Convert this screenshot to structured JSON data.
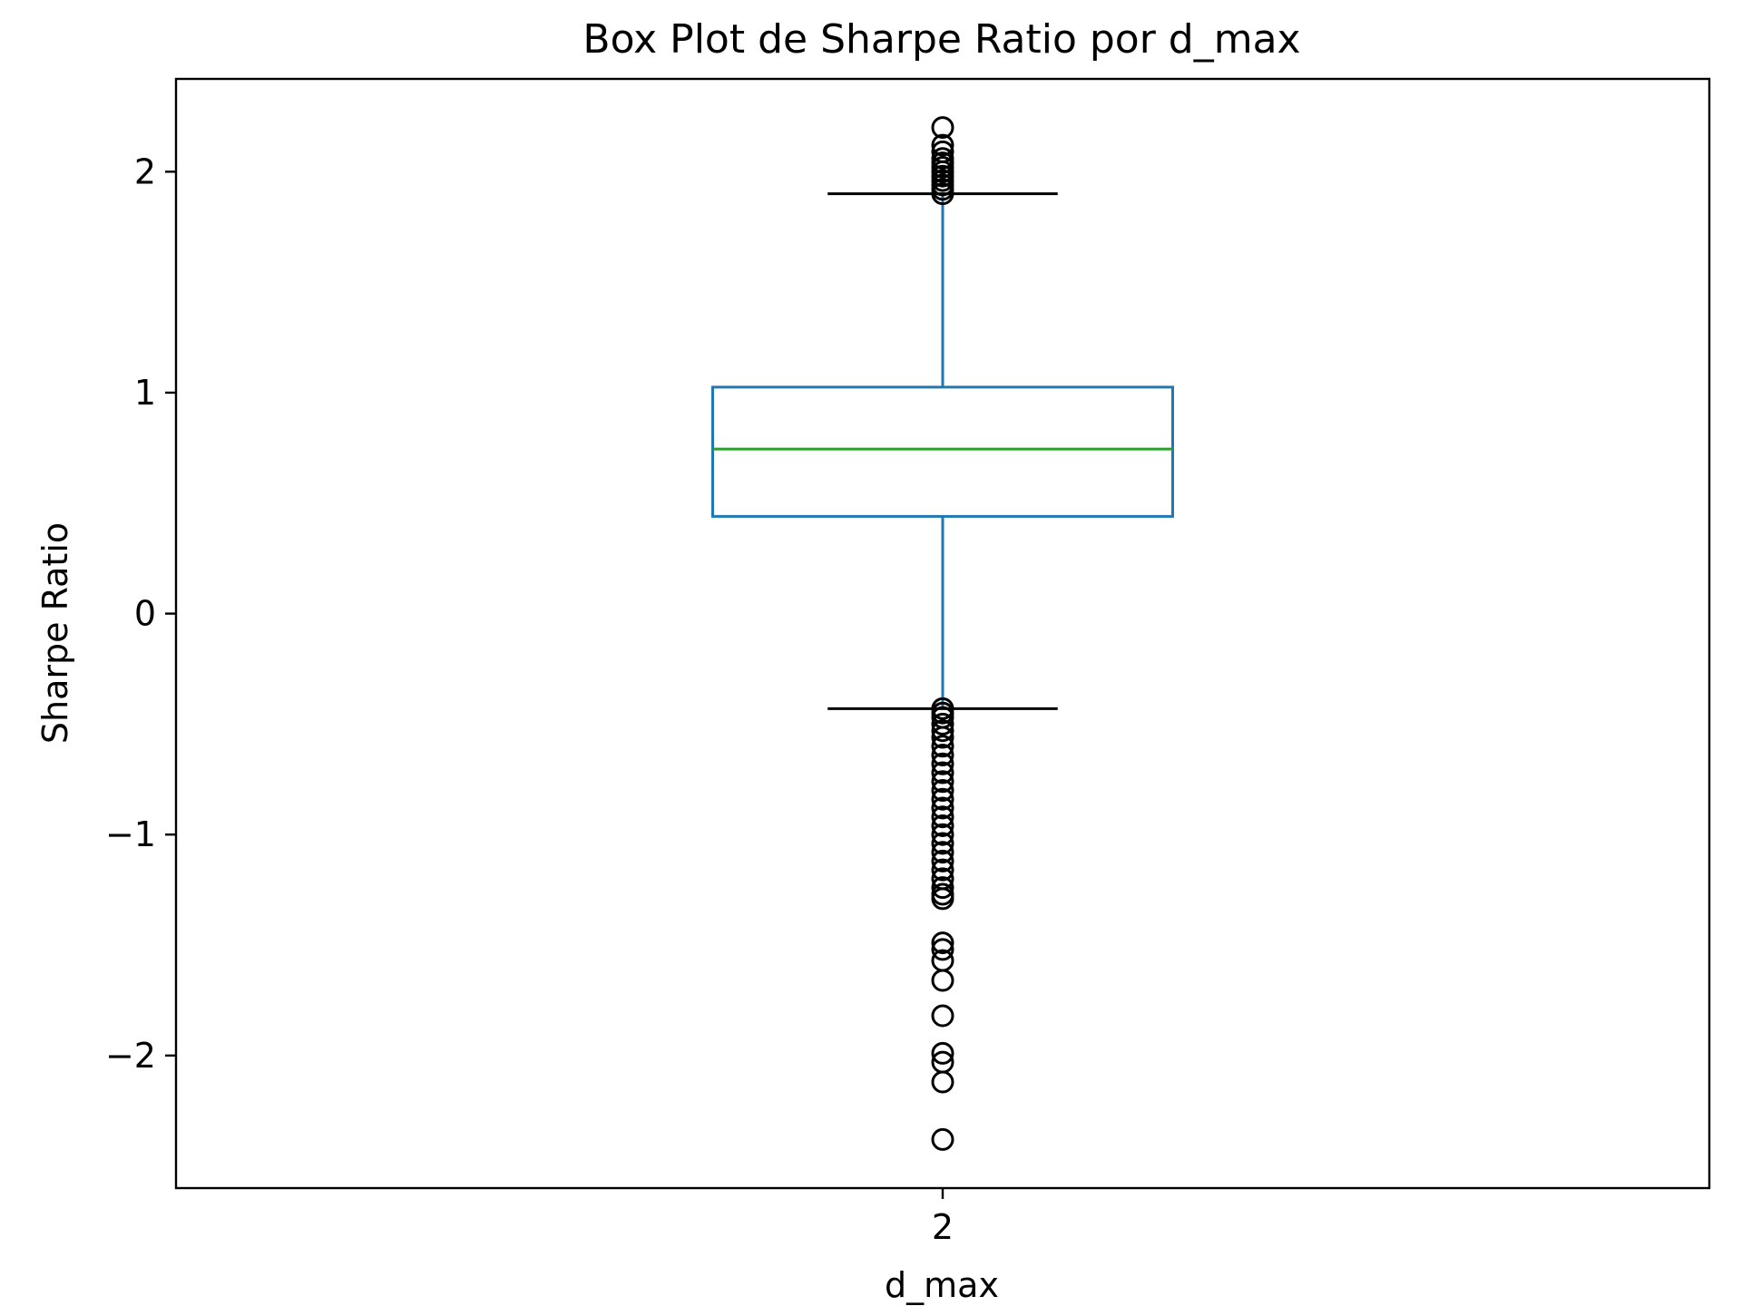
{
  "chart_data": {
    "type": "box",
    "title": "Box Plot de Sharpe Ratio por d_max",
    "xlabel": "d_max",
    "ylabel": "Sharpe Ratio",
    "ylim": [
      -2.6,
      2.42
    ],
    "yticks": [
      {
        "value": 2,
        "label": "2"
      },
      {
        "value": 1,
        "label": "1"
      },
      {
        "value": 0,
        "label": "0"
      },
      {
        "value": -1,
        "label": "−1"
      },
      {
        "value": -2,
        "label": "−2"
      }
    ],
    "grid": false,
    "colors": {
      "box": "#1f77b4",
      "median": "#2ca02c",
      "whisker": "#1f77b4",
      "cap": "#000000",
      "flier": "#000000"
    },
    "boxes": [
      {
        "category": "2",
        "q1": 0.44,
        "median": 0.745,
        "q3": 1.025,
        "whisker_low": -0.43,
        "whisker_high": 1.9,
        "fliers": [
          2.2,
          2.12,
          2.09,
          2.06,
          2.04,
          2.02,
          2.0,
          1.98,
          1.96,
          1.94,
          1.92,
          1.9,
          -0.43,
          -0.45,
          -0.47,
          -0.5,
          -0.53,
          -0.56,
          -0.6,
          -0.64,
          -0.68,
          -0.72,
          -0.76,
          -0.8,
          -0.84,
          -0.88,
          -0.92,
          -0.96,
          -1.0,
          -1.04,
          -1.08,
          -1.12,
          -1.16,
          -1.2,
          -1.24,
          -1.27,
          -1.29,
          -1.49,
          -1.52,
          -1.57,
          -1.66,
          -1.82,
          -1.99,
          -2.03,
          -2.12,
          -2.38
        ]
      }
    ]
  }
}
